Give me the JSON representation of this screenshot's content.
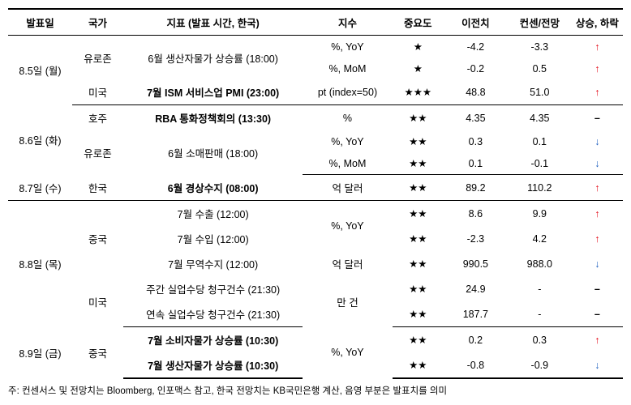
{
  "headers": {
    "date": "발표일",
    "country": "국가",
    "indicator": "지표 (발표 시간, 한국)",
    "unit": "지수",
    "importance": "중요도",
    "prev": "이전치",
    "consensus": "컨센/전망",
    "direction": "상승, 하락"
  },
  "colors": {
    "up": "#e30613",
    "down": "#1f5fbf"
  },
  "rows": [
    {
      "date": "8.5일 (월)",
      "country": "유로존",
      "indicator": "6월 생산자물가 상승률 (18:00)",
      "unit": "%, YoY",
      "importance": "★",
      "prev": "-4.2",
      "consensus": "-3.3",
      "arrow": "↑",
      "arrowClass": "arrow-up",
      "dateRowspan": 3,
      "countryRowspan": 2,
      "indRowspan": 2,
      "bold": false,
      "rowClass": "nosep"
    },
    {
      "unit": "%, MoM",
      "importance": "★",
      "prev": "-0.2",
      "consensus": "0.5",
      "arrow": "↑",
      "arrowClass": "arrow-up",
      "rowClass": "nosep"
    },
    {
      "country": "미국",
      "indicator": "7월 ISM 서비스업 PMI (23:00)",
      "unit": "pt (index=50)",
      "importance": "★★★",
      "prev": "48.8",
      "consensus": "51.0",
      "arrow": "↑",
      "arrowClass": "arrow-up",
      "bold": true,
      "rowClass": "groupend"
    },
    {
      "date": "8.6일 (화)",
      "country": "호주",
      "indicator": "RBA 통화정책회의 (13:30)",
      "unit": "%",
      "importance": "★★",
      "prev": "4.35",
      "consensus": "4.35",
      "arrow": "–",
      "arrowClass": "dash",
      "dateRowspan": 3,
      "bold": true,
      "rowClass": "nosep"
    },
    {
      "country": "유로존",
      "indicator": "6월 소매판매 (18:00)",
      "unit": "%, YoY",
      "importance": "★★",
      "prev": "0.3",
      "consensus": "0.1",
      "arrow": "↓",
      "arrowClass": "arrow-down",
      "countryRowspan": 2,
      "indRowspan": 2,
      "bold": false,
      "rowClass": "nosep"
    },
    {
      "unit": "%, MoM",
      "importance": "★★",
      "prev": "0.1",
      "consensus": "-0.1",
      "arrow": "↓",
      "arrowClass": "arrow-down",
      "rowClass": "groupend"
    },
    {
      "date": "8.7일 (수)",
      "country": "한국",
      "indicator": "6월 경상수지 (08:00)",
      "unit": "억 달러",
      "importance": "★★",
      "prev": "89.2",
      "consensus": "110.2",
      "arrow": "↑",
      "arrowClass": "arrow-up",
      "bold": true,
      "rowClass": "groupend"
    },
    {
      "date": "8.8일 (목)",
      "country": "중국",
      "indicator": "7월 수출 (12:00)",
      "unit": "%, YoY",
      "importance": "★★",
      "prev": "8.6",
      "consensus": "9.9",
      "arrow": "↑",
      "arrowClass": "arrow-up",
      "dateRowspan": 5,
      "countryRowspan": 3,
      "unitRowspan": 2,
      "bold": false,
      "rowClass": "nosep"
    },
    {
      "indicator": "7월 수입 (12:00)",
      "importance": "★★",
      "prev": "-2.3",
      "consensus": "4.2",
      "arrow": "↑",
      "arrowClass": "arrow-up",
      "bold": false,
      "rowClass": "nosep"
    },
    {
      "indicator": "7월 무역수지 (12:00)",
      "unit": "억 달러",
      "importance": "★★",
      "prev": "990.5",
      "consensus": "988.0",
      "arrow": "↓",
      "arrowClass": "arrow-down",
      "bold": false,
      "rowClass": "nosep"
    },
    {
      "country": "미국",
      "indicator": "주간 실업수당 청구건수 (21:30)",
      "unit": "만 건",
      "importance": "★★",
      "prev": "24.9",
      "consensus": "-",
      "arrow": "–",
      "arrowClass": "dash",
      "countryRowspan": 2,
      "unitRowspan": 2,
      "bold": false,
      "rowClass": "nosep"
    },
    {
      "indicator": "연속 실업수당 청구건수 (21:30)",
      "importance": "★★",
      "prev": "187.7",
      "consensus": "-",
      "arrow": "–",
      "arrowClass": "dash",
      "bold": false,
      "rowClass": "groupend"
    },
    {
      "date": "8.9일 (금)",
      "country": "중국",
      "indicator": "7월 소비자물가 상승률 (10:30)",
      "unit": "%, YoY",
      "importance": "★★",
      "prev": "0.2",
      "consensus": "0.3",
      "arrow": "↑",
      "arrowClass": "arrow-up",
      "dateRowspan": 2,
      "countryRowspan": 2,
      "unitRowspan": 2,
      "bold": true,
      "rowClass": "nosep"
    },
    {
      "indicator": "7월 생산자물가 상승률 (10:30)",
      "importance": "★★",
      "prev": "-0.8",
      "consensus": "-0.9",
      "arrow": "↓",
      "arrowClass": "arrow-down",
      "bold": true,
      "rowClass": "final"
    }
  ],
  "footer": "주: 컨센서스 및 전망치는 Bloomberg, 인포맥스 참고, 한국 전망치는 KB국민은행 계산, 음영 부분은 발표치를 의미"
}
